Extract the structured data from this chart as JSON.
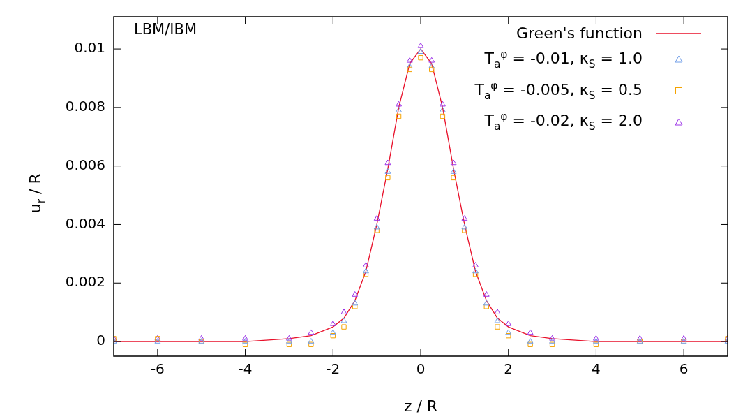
{
  "chart_data": {
    "type": "line",
    "xlabel": "z / R",
    "ylabel": "u$_{r}$ / R",
    "annotations": [
      "LBM/IBM"
    ],
    "xlim": [
      -7,
      7
    ],
    "ylim": [
      -0.0005,
      0.0111
    ],
    "xticks": [
      -6,
      -4,
      -2,
      0,
      2,
      4,
      6
    ],
    "yticks": [
      0,
      0.002,
      0.004,
      0.006,
      0.008,
      0.01
    ],
    "grid": false,
    "legend": "top right",
    "series": [
      {
        "name": "Green's function",
        "marker": "none",
        "color": "#e8102a",
        "x": [
          -7,
          -6,
          -5,
          -4,
          -3,
          -2.5,
          -2,
          -1.75,
          -1.5,
          -1.25,
          -1,
          -0.75,
          -0.5,
          -0.25,
          0,
          0.25,
          0.5,
          0.75,
          1,
          1.25,
          1.5,
          1.75,
          2,
          2.5,
          3,
          4,
          5,
          6,
          7
        ],
        "values": [
          0,
          0,
          0,
          0,
          0.0001,
          0.0002,
          0.0005,
          0.0008,
          0.0014,
          0.0024,
          0.004,
          0.0059,
          0.008,
          0.0095,
          0.01,
          0.0095,
          0.008,
          0.0059,
          0.004,
          0.0024,
          0.0014,
          0.0008,
          0.0005,
          0.0002,
          0.0001,
          0,
          0,
          0,
          0
        ]
      },
      {
        "name": "T$_{a}$$^{φ}$ = -0.01, κ$_{S}$ = 1.0",
        "type": "scatter",
        "marker": "triangle",
        "color": "#6f9de8",
        "x": [
          -7,
          -6,
          -5,
          -4,
          -3,
          -2.5,
          -2,
          -1.75,
          -1.5,
          -1.25,
          -1,
          -0.75,
          -0.5,
          -0.25,
          0,
          0.25,
          0.5,
          0.75,
          1,
          1.25,
          1.5,
          1.75,
          2,
          2.5,
          3,
          4,
          5,
          6,
          7
        ],
        "values": [
          0,
          0,
          0,
          0,
          0,
          0,
          0.0003,
          0.0007,
          0.0013,
          0.0024,
          0.0039,
          0.0058,
          0.0079,
          0.0094,
          0.0099,
          0.0094,
          0.0079,
          0.0058,
          0.0039,
          0.0024,
          0.0013,
          0.0007,
          0.0003,
          0,
          0,
          0,
          0,
          0,
          0
        ]
      },
      {
        "name": "T$_{a}$$^{φ}$ = -0.005, κ$_{S}$ = 0.5",
        "type": "scatter",
        "marker": "square",
        "color": "#f5a300",
        "x": [
          -7,
          -6,
          -5,
          -4,
          -3,
          -2.5,
          -2,
          -1.75,
          -1.5,
          -1.25,
          -1,
          -0.75,
          -0.5,
          -0.25,
          0,
          0.25,
          0.5,
          0.75,
          1,
          1.25,
          1.5,
          1.75,
          2,
          2.5,
          3,
          4,
          5,
          6,
          7
        ],
        "values": [
          0.0001,
          0.0001,
          0,
          -0.0001,
          -0.0001,
          -0.0001,
          0.0002,
          0.0005,
          0.0012,
          0.0023,
          0.0038,
          0.0056,
          0.0077,
          0.0093,
          0.0097,
          0.0093,
          0.0077,
          0.0056,
          0.0038,
          0.0023,
          0.0012,
          0.0005,
          0.0002,
          -0.0001,
          -0.0001,
          -0.0001,
          0,
          0,
          0.0001
        ]
      },
      {
        "name": "T$_{a}$$^{φ}$ = -0.02, κ$_{S}$ = 2.0",
        "type": "scatter",
        "marker": "triangle",
        "color": "#9b30e8",
        "x": [
          -7,
          -6,
          -5,
          -4,
          -3,
          -2.5,
          -2,
          -1.75,
          -1.5,
          -1.25,
          -1,
          -0.75,
          -0.5,
          -0.25,
          0,
          0.25,
          0.5,
          0.75,
          1,
          1.25,
          1.5,
          1.75,
          2,
          2.5,
          3,
          4,
          5,
          6,
          7
        ],
        "values": [
          0.0001,
          0.0001,
          0.0001,
          0.0001,
          0.0001,
          0.0003,
          0.0006,
          0.001,
          0.0016,
          0.0026,
          0.0042,
          0.0061,
          0.0081,
          0.0096,
          0.0101,
          0.0096,
          0.0081,
          0.0061,
          0.0042,
          0.0026,
          0.0016,
          0.001,
          0.0006,
          0.0003,
          0.0001,
          0.0001,
          0.0001,
          0.0001,
          0.0001
        ]
      }
    ]
  }
}
